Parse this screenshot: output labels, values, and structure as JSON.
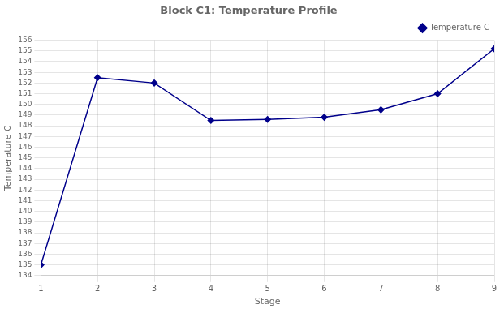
{
  "chart_data": {
    "type": "line",
    "title": "Block C1: Temperature Profile",
    "xlabel": "Stage",
    "ylabel": "Temperature C",
    "x": [
      1,
      2,
      3,
      4,
      5,
      6,
      7,
      8,
      9
    ],
    "series": [
      {
        "name": "Temperature C",
        "color": "#00008B",
        "marker": "diamond",
        "values": [
          135.0,
          152.5,
          152.0,
          148.5,
          148.6,
          148.8,
          149.5,
          151.0,
          155.2
        ]
      }
    ],
    "xlim": [
      1,
      9
    ],
    "ylim": [
      134,
      156
    ],
    "xticks": [
      1,
      2,
      3,
      4,
      5,
      6,
      7,
      8,
      9
    ],
    "yticks": [
      134,
      135,
      136,
      137,
      138,
      139,
      140,
      141,
      142,
      143,
      144,
      145,
      146,
      147,
      148,
      149,
      150,
      151,
      152,
      153,
      154,
      155,
      156
    ],
    "grid": true,
    "legend": "upper right"
  }
}
